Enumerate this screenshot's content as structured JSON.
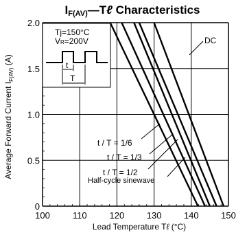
{
  "chart_data": {
    "type": "line",
    "title": {
      "text": "I",
      "sub": "F(AV)",
      "rest": "—T",
      "italic_l": "ℓ",
      "tail": " Characteristics"
    },
    "ylabel": {
      "text": "Average Forward Current   I",
      "sub": "F(AV)",
      "unit": " (A)"
    },
    "xlabel": {
      "text": "Lead Temperature   T",
      "italic_l": "ℓ",
      "unit": " (°C)"
    },
    "xlim": [
      100,
      150
    ],
    "ylim": [
      0,
      2.0
    ],
    "x_ticks": [
      100,
      110,
      120,
      130,
      140,
      150
    ],
    "x_tick_labels": [
      "100",
      "110",
      "120",
      "130",
      "140",
      "150"
    ],
    "y_ticks": [
      0,
      0.5,
      1.0,
      1.5,
      2.0
    ],
    "y_tick_labels": [
      "0",
      "0.5",
      "1.0",
      "1.5",
      "2.0"
    ],
    "grid": true,
    "series": [
      {
        "name": "t / T = 1/6",
        "x": [
          118.2,
          141.8
        ],
        "y": [
          2.0,
          0
        ]
      },
      {
        "name": "t / T = 1/3",
        "x": [
          121.3,
          143.7
        ],
        "y": [
          2.0,
          0
        ]
      },
      {
        "name": "t / T = 1/2",
        "x": [
          124.6,
          145.0
        ],
        "y": [
          2.0,
          0
        ]
      },
      {
        "name": "Half-cycle sinewave",
        "x": [
          126.0,
          146.8
        ],
        "y": [
          2.0,
          0
        ]
      },
      {
        "name": "DC",
        "x": [
          130.0,
          148.7
        ],
        "y": [
          2.0,
          0
        ]
      }
    ],
    "annotations": [
      {
        "text": "DC"
      },
      {
        "text": "t / T = 1/6"
      },
      {
        "text": "t / T = 1/3"
      },
      {
        "text": "t / T = 1/2"
      },
      {
        "text": "Half-cycle sinewave"
      }
    ],
    "inset": {
      "line1": {
        "text": "Tj=150°C"
      },
      "line2": {
        "pre": "V",
        "sub": "R",
        "post": "=200V"
      },
      "label_t": "t",
      "label_T": "T"
    }
  }
}
